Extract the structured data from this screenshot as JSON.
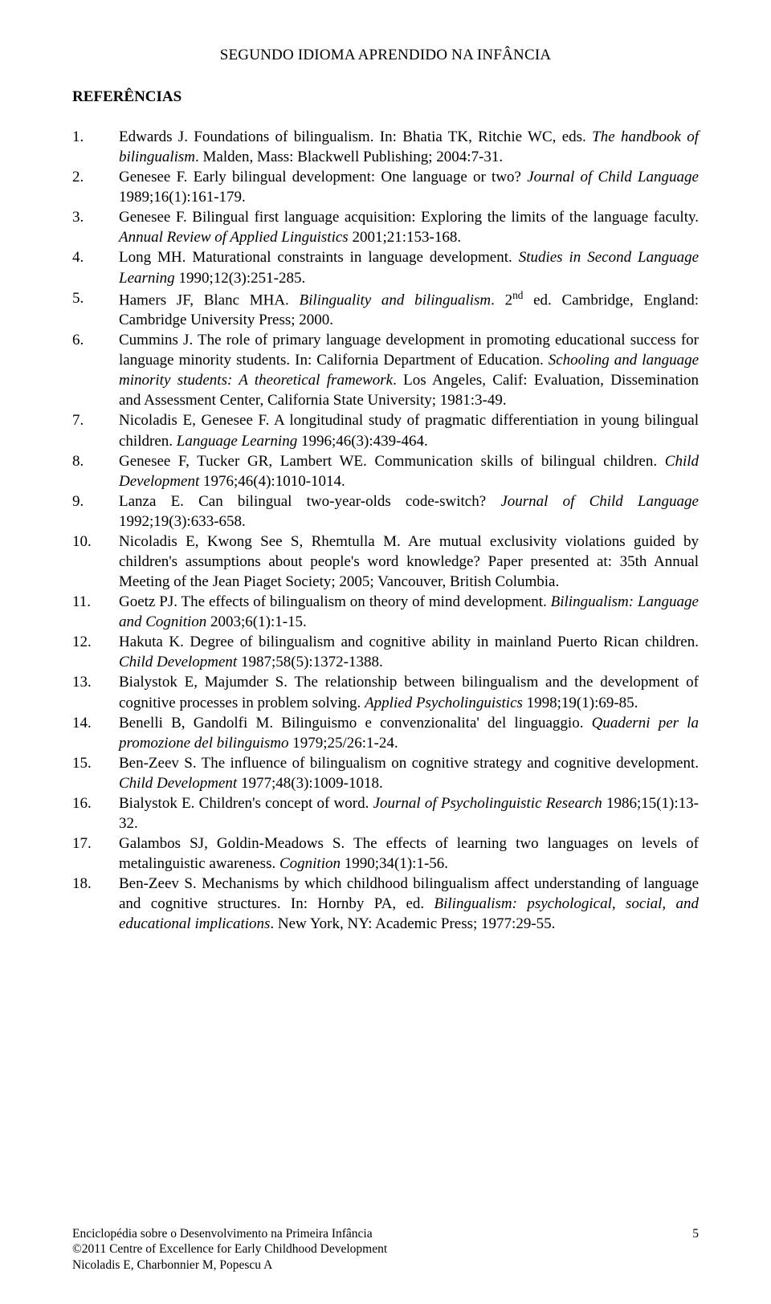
{
  "runningHead": "SEGUNDO IDIOMA APRENDIDO NA INFÂNCIA",
  "sectionTitle": "REFERÊNCIAS",
  "refs": [
    {
      "n": "1.",
      "segs": [
        {
          "t": "Edwards J. Foundations of bilingualism. In: Bhatia TK, Ritchie WC, eds. "
        },
        {
          "t": "The handbook of bilingualism",
          "i": true
        },
        {
          "t": ". Malden, Mass: Blackwell Publishing; 2004:7-31."
        }
      ]
    },
    {
      "n": "2.",
      "segs": [
        {
          "t": "Genesee F. Early bilingual development: One language or two? "
        },
        {
          "t": "Journal of Child Language",
          "i": true
        },
        {
          "t": " 1989;16(1):161-179."
        }
      ]
    },
    {
      "n": "3.",
      "segs": [
        {
          "t": "Genesee F. Bilingual first language acquisition: Exploring the limits of the language faculty. "
        },
        {
          "t": "Annual Review of Applied Linguistics",
          "i": true
        },
        {
          "t": " 2001;21:153-168."
        }
      ]
    },
    {
      "n": "4.",
      "segs": [
        {
          "t": "Long MH. Maturational constraints in language development. "
        },
        {
          "t": "Studies in Second Language Learning",
          "i": true
        },
        {
          "t": " 1990;12(3):251-285."
        }
      ]
    },
    {
      "n": "5.",
      "segs": [
        {
          "t": "Hamers JF, Blanc MHA. "
        },
        {
          "t": "Bilinguality and bilingualism",
          "i": true
        },
        {
          "t": ". 2"
        },
        {
          "t": "nd",
          "sup": true
        },
        {
          "t": " ed. Cambridge, England: Cambridge University Press; 2000."
        }
      ]
    },
    {
      "n": "6.",
      "segs": [
        {
          "t": "Cummins J. The role of primary language development in promoting educational success for language minority students. In: California Department of Education. "
        },
        {
          "t": "Schooling and language minority students: A theoretical framework",
          "i": true
        },
        {
          "t": ". Los Angeles, Calif: Evaluation, Dissemination and Assessment Center, California State University; 1981:3-49."
        }
      ]
    },
    {
      "n": "7.",
      "segs": [
        {
          "t": "Nicoladis E, Genesee F. A longitudinal study of pragmatic differentiation in young bilingual children. "
        },
        {
          "t": "Language Learning",
          "i": true
        },
        {
          "t": " 1996;46(3):439-464."
        }
      ]
    },
    {
      "n": "8.",
      "segs": [
        {
          "t": "Genesee F, Tucker GR, Lambert WE. Communication skills of bilingual children. "
        },
        {
          "t": "Child Development",
          "i": true
        },
        {
          "t": " 1976;46(4):1010-1014."
        }
      ]
    },
    {
      "n": "9.",
      "segs": [
        {
          "t": "Lanza E. Can bilingual two-year-olds code-switch? "
        },
        {
          "t": "Journal of Child Language",
          "i": true
        },
        {
          "t": " 1992;19(3):633-658."
        }
      ]
    },
    {
      "n": "10.",
      "segs": [
        {
          "t": "Nicoladis E, Kwong See S, Rhemtulla M. Are mutual exclusivity violations guided by children's assumptions about people's word knowledge? Paper presented at: 35th Annual Meeting of the Jean Piaget Society; 2005; Vancouver, British Columbia."
        }
      ]
    },
    {
      "n": "11.",
      "segs": [
        {
          "t": "Goetz PJ. The effects of bilingualism on theory of mind development. "
        },
        {
          "t": "Bilingualism: Language and Cognition",
          "i": true
        },
        {
          "t": " 2003;6(1):1-15."
        }
      ]
    },
    {
      "n": "12.",
      "segs": [
        {
          "t": "Hakuta K. Degree of bilingualism and cognitive ability in mainland Puerto Rican children. "
        },
        {
          "t": "Child Development",
          "i": true
        },
        {
          "t": " 1987;58(5):1372-1388."
        }
      ]
    },
    {
      "n": "13.",
      "segs": [
        {
          "t": "Bialystok E, Majumder S. The relationship between bilingualism and the development of cognitive processes in problem solving. "
        },
        {
          "t": "Applied Psycholinguistics",
          "i": true
        },
        {
          "t": " 1998;19(1):69-85."
        }
      ]
    },
    {
      "n": "14.",
      "segs": [
        {
          "t": "Benelli B, Gandolfi M. Bilinguismo e convenzionalita' del linguaggio. "
        },
        {
          "t": "Quaderni per la promozione del bilinguismo",
          "i": true
        },
        {
          "t": " 1979;25/26:1-24."
        }
      ]
    },
    {
      "n": "15.",
      "segs": [
        {
          "t": "Ben-Zeev S. The influence of bilingualism on cognitive strategy and cognitive development. "
        },
        {
          "t": "Child Development",
          "i": true
        },
        {
          "t": " 1977;48(3):1009-1018."
        }
      ]
    },
    {
      "n": "16.",
      "segs": [
        {
          "t": "Bialystok E. Children's concept of word. "
        },
        {
          "t": "Journal of Psycholinguistic Research",
          "i": true
        },
        {
          "t": " 1986;15(1):13-32."
        }
      ]
    },
    {
      "n": "17.",
      "segs": [
        {
          "t": "Galambos SJ, Goldin-Meadows S. The effects of learning two languages on levels of metalinguistic awareness. "
        },
        {
          "t": "Cognition",
          "i": true
        },
        {
          "t": " 1990;34(1):1-56."
        }
      ]
    },
    {
      "n": "18.",
      "segs": [
        {
          "t": "Ben-Zeev S. Mechanisms by which childhood bilingualism affect understanding of language and cognitive structures. In: Hornby PA, ed. "
        },
        {
          "t": "Bilingualism: psychological, social, and educational implications",
          "i": true
        },
        {
          "t": ". New York, NY: Academic Press; 1977:29-55."
        }
      ]
    }
  ],
  "footer": {
    "line1": "Enciclopédia sobre o Desenvolvimento na Primeira Infância",
    "line2": "©2011 Centre of Excellence for Early Childhood Development",
    "line3": "Nicoladis E, Charbonnier M, Popescu A",
    "pageNumber": "5"
  }
}
